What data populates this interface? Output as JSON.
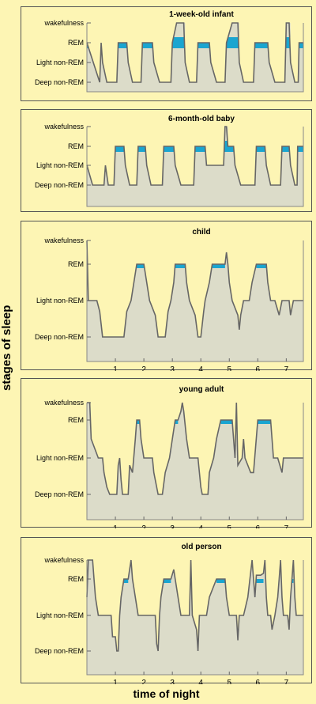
{
  "axis_labels": {
    "y": "stages of sleep",
    "x": "time of night"
  },
  "colors": {
    "background": "#fdf5b4",
    "plot_fill": "#dcdcc9",
    "rem": "#1aa5d0",
    "line": "#666666"
  },
  "chart_data": [
    {
      "type": "line",
      "title": "1-week-old infant",
      "stage_labels": [
        "wakefulness",
        "REM",
        "Light non-REM",
        "Deep non-REM"
      ],
      "x_ticks": [],
      "xlim": [
        0,
        7.6
      ],
      "steps": [
        [
          0,
          2
        ],
        [
          0.45,
          0
        ],
        [
          0.5,
          2
        ],
        [
          0.55,
          1
        ],
        [
          0.7,
          0
        ],
        [
          1.05,
          0
        ],
        [
          1.1,
          2
        ],
        [
          1.4,
          2
        ],
        [
          1.45,
          1
        ],
        [
          1.6,
          0
        ],
        [
          1.9,
          0
        ],
        [
          1.95,
          2
        ],
        [
          2.3,
          2
        ],
        [
          2.35,
          1
        ],
        [
          2.55,
          0
        ],
        [
          2.95,
          0
        ],
        [
          3.0,
          2
        ],
        [
          3.15,
          3
        ],
        [
          3.4,
          3
        ],
        [
          3.45,
          1
        ],
        [
          3.6,
          0
        ],
        [
          3.85,
          0
        ],
        [
          3.9,
          2
        ],
        [
          4.3,
          2
        ],
        [
          4.35,
          1
        ],
        [
          4.55,
          0
        ],
        [
          4.85,
          0
        ],
        [
          4.9,
          2
        ],
        [
          5.1,
          3
        ],
        [
          5.3,
          3
        ],
        [
          5.35,
          1
        ],
        [
          5.5,
          0
        ],
        [
          5.85,
          0
        ],
        [
          5.9,
          2
        ],
        [
          6.35,
          2
        ],
        [
          6.4,
          1
        ],
        [
          6.6,
          0
        ],
        [
          6.95,
          0
        ],
        [
          7.0,
          3
        ],
        [
          7.1,
          3
        ],
        [
          7.15,
          1
        ],
        [
          7.3,
          0
        ],
        [
          7.42,
          0
        ],
        [
          7.45,
          2
        ],
        [
          7.6,
          2
        ]
      ]
    },
    {
      "type": "line",
      "title": "6-month-old  baby",
      "stage_labels": [
        "wakefulness",
        "REM",
        "Light non-REM",
        "Deep non-REM"
      ],
      "x_ticks": [],
      "xlim": [
        0,
        7.6
      ],
      "steps": [
        [
          0,
          1
        ],
        [
          0.2,
          0
        ],
        [
          0.6,
          0
        ],
        [
          0.65,
          1
        ],
        [
          0.75,
          0
        ],
        [
          0.95,
          0
        ],
        [
          1.0,
          2
        ],
        [
          1.3,
          2
        ],
        [
          1.35,
          1
        ],
        [
          1.5,
          0
        ],
        [
          1.75,
          0
        ],
        [
          1.8,
          2
        ],
        [
          2.05,
          2
        ],
        [
          2.1,
          1
        ],
        [
          2.25,
          0
        ],
        [
          2.65,
          0
        ],
        [
          2.7,
          2
        ],
        [
          3.05,
          2
        ],
        [
          3.1,
          1
        ],
        [
          3.3,
          0
        ],
        [
          3.75,
          0
        ],
        [
          3.8,
          2
        ],
        [
          4.15,
          2
        ],
        [
          4.2,
          1
        ],
        [
          4.8,
          1
        ],
        [
          4.85,
          3
        ],
        [
          4.9,
          3
        ],
        [
          4.95,
          2
        ],
        [
          5.15,
          2
        ],
        [
          5.2,
          1
        ],
        [
          5.4,
          0
        ],
        [
          5.9,
          0
        ],
        [
          5.95,
          2
        ],
        [
          6.25,
          2
        ],
        [
          6.3,
          1
        ],
        [
          6.45,
          0
        ],
        [
          6.8,
          0
        ],
        [
          6.85,
          2
        ],
        [
          7.1,
          2
        ],
        [
          7.15,
          1
        ],
        [
          7.3,
          0
        ],
        [
          7.38,
          0
        ],
        [
          7.4,
          2
        ],
        [
          7.6,
          2
        ]
      ]
    },
    {
      "type": "line",
      "title": "child",
      "stage_labels": [
        "wakefulness",
        "REM",
        "Light non-REM",
        "Deep non-REM"
      ],
      "x_ticks": [
        "1",
        "2",
        "3",
        "4",
        "5",
        "6",
        "7"
      ],
      "xlim": [
        0,
        7.6
      ],
      "steps": [
        [
          0,
          3
        ],
        [
          0.05,
          1
        ],
        [
          0.35,
          1
        ],
        [
          0.45,
          0.7
        ],
        [
          0.55,
          0
        ],
        [
          1.3,
          0
        ],
        [
          1.4,
          0.7
        ],
        [
          1.55,
          1
        ],
        [
          1.65,
          1.5
        ],
        [
          1.75,
          2
        ],
        [
          2.0,
          2
        ],
        [
          2.1,
          1.5
        ],
        [
          2.2,
          1
        ],
        [
          2.4,
          0.6
        ],
        [
          2.5,
          0
        ],
        [
          2.75,
          0
        ],
        [
          2.85,
          0.7
        ],
        [
          2.95,
          1
        ],
        [
          3.05,
          1.5
        ],
        [
          3.1,
          2
        ],
        [
          3.45,
          2
        ],
        [
          3.5,
          1.5
        ],
        [
          3.6,
          1
        ],
        [
          3.8,
          0.6
        ],
        [
          3.9,
          0
        ],
        [
          4.0,
          0
        ],
        [
          4.1,
          0.7
        ],
        [
          4.15,
          1
        ],
        [
          4.3,
          1.5
        ],
        [
          4.4,
          2
        ],
        [
          4.85,
          2
        ],
        [
          4.9,
          2.5
        ],
        [
          4.95,
          2
        ],
        [
          5.0,
          1.5
        ],
        [
          5.1,
          1
        ],
        [
          5.3,
          0.6
        ],
        [
          5.35,
          0.2
        ],
        [
          5.4,
          0.6
        ],
        [
          5.5,
          1
        ],
        [
          5.7,
          1
        ],
        [
          5.8,
          1.5
        ],
        [
          5.95,
          2
        ],
        [
          6.3,
          2
        ],
        [
          6.35,
          1.5
        ],
        [
          6.45,
          1
        ],
        [
          6.6,
          1
        ],
        [
          6.75,
          0.6
        ],
        [
          6.85,
          1
        ],
        [
          7.1,
          1
        ],
        [
          7.15,
          0.6
        ],
        [
          7.25,
          1
        ],
        [
          7.6,
          1
        ]
      ],
      "rem_periods": [
        [
          1.75,
          2.0
        ],
        [
          3.1,
          3.45
        ],
        [
          4.4,
          4.85
        ],
        [
          5.95,
          6.3
        ]
      ]
    },
    {
      "type": "line",
      "title": "young adult",
      "stage_labels": [
        "wakefulness",
        "REM",
        "Light non-REM",
        "Deep non-REM"
      ],
      "x_ticks": [
        "1",
        "2",
        "3",
        "4",
        "5",
        "6",
        "7"
      ],
      "xlim": [
        0,
        7.6
      ],
      "steps": [
        [
          0,
          3
        ],
        [
          0.1,
          3
        ],
        [
          0.15,
          1.5
        ],
        [
          0.3,
          1.2
        ],
        [
          0.4,
          1
        ],
        [
          0.55,
          1
        ],
        [
          0.6,
          0.6
        ],
        [
          0.7,
          0.2
        ],
        [
          0.8,
          0
        ],
        [
          1.05,
          0
        ],
        [
          1.1,
          0.8
        ],
        [
          1.15,
          1
        ],
        [
          1.2,
          0.4
        ],
        [
          1.25,
          0
        ],
        [
          1.45,
          0
        ],
        [
          1.5,
          0.8
        ],
        [
          1.6,
          0.6
        ],
        [
          1.7,
          1.5
        ],
        [
          1.75,
          2
        ],
        [
          1.85,
          2
        ],
        [
          1.9,
          1.5
        ],
        [
          2.0,
          1
        ],
        [
          2.3,
          1
        ],
        [
          2.35,
          0.6
        ],
        [
          2.5,
          0
        ],
        [
          2.65,
          0
        ],
        [
          2.75,
          0.6
        ],
        [
          2.9,
          1
        ],
        [
          3.0,
          1.5
        ],
        [
          3.1,
          2
        ],
        [
          3.2,
          2
        ],
        [
          3.3,
          2.5
        ],
        [
          3.35,
          3
        ],
        [
          3.4,
          2.5
        ],
        [
          3.5,
          1.5
        ],
        [
          3.6,
          1
        ],
        [
          3.9,
          1
        ],
        [
          3.95,
          0.6
        ],
        [
          4.0,
          0.2
        ],
        [
          4.05,
          0
        ],
        [
          4.25,
          0
        ],
        [
          4.3,
          0.6
        ],
        [
          4.45,
          1
        ],
        [
          4.55,
          1.5
        ],
        [
          4.7,
          2
        ],
        [
          5.1,
          2
        ],
        [
          5.15,
          1.5
        ],
        [
          5.2,
          1
        ],
        [
          5.25,
          3
        ],
        [
          5.3,
          0.8
        ],
        [
          5.45,
          1
        ],
        [
          5.5,
          1.5
        ],
        [
          5.55,
          1
        ],
        [
          5.75,
          0.6
        ],
        [
          5.85,
          0.6
        ],
        [
          6.0,
          2
        ],
        [
          6.45,
          2
        ],
        [
          6.5,
          1.5
        ],
        [
          6.55,
          1
        ],
        [
          6.7,
          1
        ],
        [
          6.85,
          0.6
        ],
        [
          6.9,
          1
        ],
        [
          7.6,
          1
        ]
      ],
      "rem_periods": [
        [
          1.75,
          1.85
        ],
        [
          3.1,
          3.2
        ],
        [
          4.7,
          5.1
        ],
        [
          6.0,
          6.45
        ]
      ]
    },
    {
      "type": "line",
      "title": "old person",
      "stage_labels": [
        "wakefulness",
        "REM",
        "Light non-REM",
        "Deep non-REM"
      ],
      "x_ticks": [
        "1",
        "2",
        "3",
        "4",
        "5",
        "6",
        "7"
      ],
      "xlim": [
        0,
        7.6
      ],
      "steps": [
        [
          0,
          1.5
        ],
        [
          0.05,
          3
        ],
        [
          0.2,
          3
        ],
        [
          0.25,
          2
        ],
        [
          0.3,
          1.5
        ],
        [
          0.4,
          1
        ],
        [
          0.85,
          1
        ],
        [
          0.9,
          0.4
        ],
        [
          1.0,
          0.4
        ],
        [
          1.05,
          0
        ],
        [
          1.1,
          0
        ],
        [
          1.15,
          1
        ],
        [
          1.2,
          1.5
        ],
        [
          1.3,
          2
        ],
        [
          1.45,
          2
        ],
        [
          1.5,
          2.5
        ],
        [
          1.55,
          3
        ],
        [
          1.6,
          2
        ],
        [
          1.7,
          1.5
        ],
        [
          1.8,
          1
        ],
        [
          2.4,
          1
        ],
        [
          2.45,
          0.2
        ],
        [
          2.5,
          0
        ],
        [
          2.55,
          1
        ],
        [
          2.6,
          1.5
        ],
        [
          2.7,
          2
        ],
        [
          2.95,
          2
        ],
        [
          3.05,
          2.5
        ],
        [
          3.1,
          2
        ],
        [
          3.2,
          1.5
        ],
        [
          3.3,
          1
        ],
        [
          3.6,
          1
        ],
        [
          3.65,
          3
        ],
        [
          3.7,
          1
        ],
        [
          3.85,
          0.6
        ],
        [
          3.9,
          0
        ],
        [
          3.95,
          1
        ],
        [
          4.2,
          1
        ],
        [
          4.3,
          1.5
        ],
        [
          4.55,
          2
        ],
        [
          4.85,
          2
        ],
        [
          4.9,
          1.5
        ],
        [
          5.0,
          1
        ],
        [
          5.25,
          1
        ],
        [
          5.3,
          0.3
        ],
        [
          5.35,
          1
        ],
        [
          5.5,
          1
        ],
        [
          5.65,
          1.5
        ],
        [
          5.8,
          3
        ],
        [
          5.85,
          2
        ],
        [
          5.9,
          1.5
        ],
        [
          5.95,
          2.2
        ],
        [
          6.1,
          2.2
        ],
        [
          6.2,
          2.3
        ],
        [
          6.25,
          3
        ],
        [
          6.3,
          1.5
        ],
        [
          6.35,
          1
        ],
        [
          6.45,
          1
        ],
        [
          6.5,
          0.6
        ],
        [
          6.6,
          1
        ],
        [
          6.7,
          1.5
        ],
        [
          6.75,
          2
        ],
        [
          6.8,
          3
        ],
        [
          6.85,
          1.5
        ],
        [
          6.9,
          1
        ],
        [
          7.05,
          1
        ],
        [
          7.1,
          0.6
        ],
        [
          7.15,
          1.5
        ],
        [
          7.2,
          2
        ],
        [
          7.25,
          3
        ],
        [
          7.3,
          1.5
        ],
        [
          7.35,
          1
        ],
        [
          7.6,
          1
        ]
      ],
      "rem_periods": [
        [
          1.3,
          1.45
        ],
        [
          2.7,
          2.95
        ],
        [
          4.55,
          4.85
        ],
        [
          5.95,
          6.2
        ],
        [
          7.2,
          7.25
        ]
      ]
    }
  ]
}
